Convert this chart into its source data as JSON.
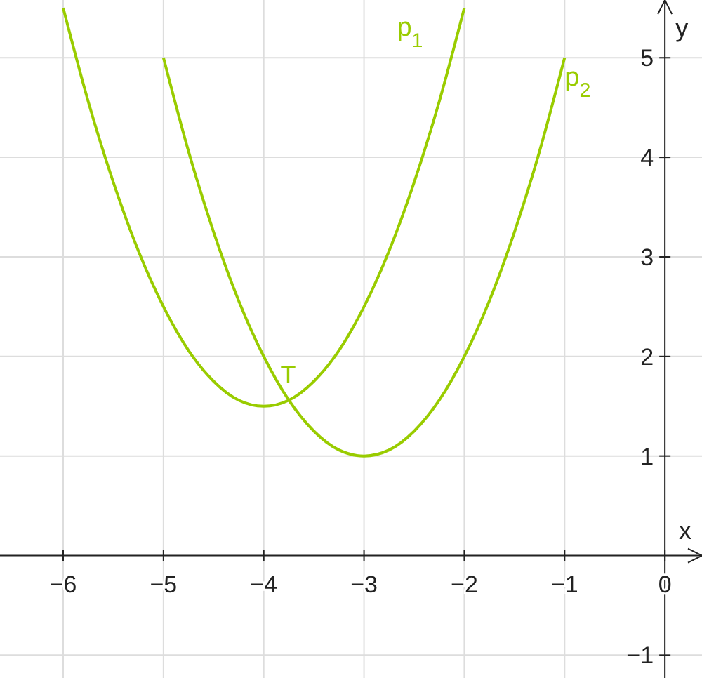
{
  "chart_data": {
    "type": "line",
    "xlabel": "x",
    "ylabel": "y",
    "xlim": [
      -6.63,
      0.37
    ],
    "ylim": [
      -1.23,
      5.58
    ],
    "xticks": [
      -6,
      -5,
      -4,
      -3,
      -2,
      -1,
      0
    ],
    "yticks": [
      -1,
      1,
      2,
      3,
      4,
      5
    ],
    "grid": true,
    "legend": false,
    "marker": "none",
    "line_style": "solid",
    "series": [
      {
        "name": "p$_{1}$",
        "color": "#99cc00",
        "x": [
          -6,
          -5.75,
          -5.5,
          -5.25,
          -5,
          -4.75,
          -4.5,
          -4.25,
          -4,
          -3.75,
          -3.5,
          -3.25,
          -3,
          -2.75,
          -2.5,
          -2.25,
          -2
        ],
        "values": [
          5.5,
          4.56,
          3.75,
          3.06,
          2.5,
          2.06,
          1.75,
          1.56,
          1.5,
          1.56,
          1.75,
          2.06,
          2.5,
          3.06,
          3.75,
          4.56,
          5.5
        ]
      },
      {
        "name": "p$_{2}$",
        "color": "#99cc00",
        "x": [
          -5,
          -4.75,
          -4.5,
          -4.25,
          -4,
          -3.75,
          -3.5,
          -3.25,
          -3,
          -2.75,
          -2.5,
          -2.25,
          -2,
          -1.75,
          -1.5,
          -1.25,
          -1
        ],
        "values": [
          5,
          4.06,
          3.25,
          2.56,
          2,
          1.56,
          1.25,
          1.06,
          1,
          1.06,
          1.25,
          1.56,
          2,
          2.56,
          3.25,
          4.06,
          5
        ]
      }
    ],
    "annotations": [
      {
        "text": "T",
        "x": -3.75,
        "y": 1.56
      }
    ]
  }
}
